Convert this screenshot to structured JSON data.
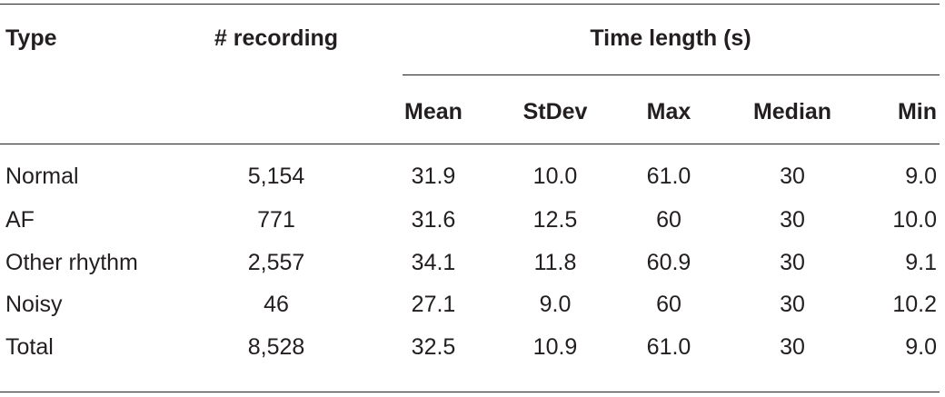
{
  "headers": {
    "type": "Type",
    "recording": "# recording",
    "time_length": "Time length (s)",
    "mean": "Mean",
    "stdev": "StDev",
    "max": "Max",
    "median": "Median",
    "min": "Min"
  },
  "rows": [
    {
      "type": "Normal",
      "recording": "5,154",
      "mean": "31.9",
      "stdev": "10.0",
      "max": "61.0",
      "median": "30",
      "min": "9.0"
    },
    {
      "type": "AF",
      "recording": "771",
      "mean": "31.6",
      "stdev": "12.5",
      "max": "60",
      "median": "30",
      "min": "10.0"
    },
    {
      "type": "Other rhythm",
      "recording": "2,557",
      "mean": "34.1",
      "stdev": "11.8",
      "max": "60.9",
      "median": "30",
      "min": "9.1"
    },
    {
      "type": "Noisy",
      "recording": "46",
      "mean": "27.1",
      "stdev": "9.0",
      "max": "60",
      "median": "30",
      "min": "10.2"
    },
    {
      "type": "Total",
      "recording": "8,528",
      "mean": "32.5",
      "stdev": "10.9",
      "max": "61.0",
      "median": "30",
      "min": "9.0"
    }
  ]
}
